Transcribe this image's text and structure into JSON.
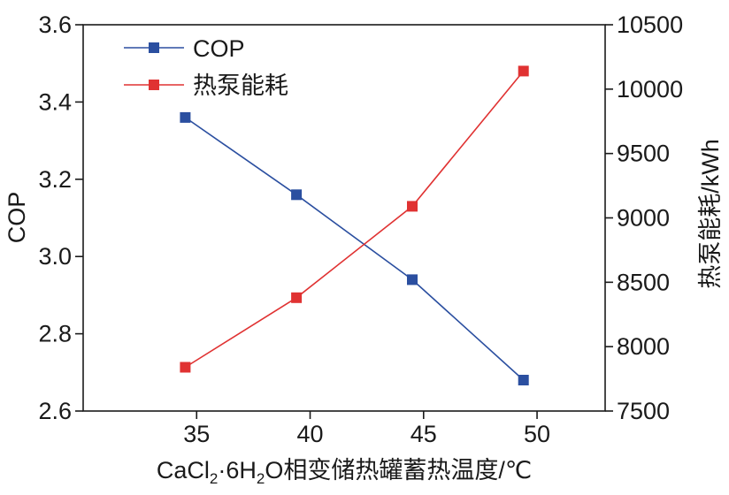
{
  "chart_data": {
    "type": "line",
    "x": [
      34.5,
      39.4,
      44.5,
      49.4
    ],
    "xlim": [
      30,
      53
    ],
    "x_ticks": [
      "35",
      "40",
      "45",
      "50"
    ],
    "xlabel": {
      "prefix": "CaCl",
      "sub1": "2",
      "mid": "·6H",
      "sub2": "2",
      "suffix": "O相变储热罐蓄热温度/℃"
    },
    "ylabel_left": "COP",
    "ylim_left": [
      2.6,
      3.6
    ],
    "y_ticks_left": [
      "2.6",
      "2.8",
      "3.0",
      "3.2",
      "3.4",
      "3.6"
    ],
    "ylabel_right": "热泵能耗/kWh",
    "ylim_right": [
      7500,
      10500
    ],
    "y_ticks_right": [
      "7500",
      "8000",
      "8500",
      "9000",
      "9500",
      "10000",
      "10500"
    ],
    "series": [
      {
        "name": "COP",
        "axis": "left",
        "color": "#2b4fa0",
        "values": [
          3.36,
          3.16,
          2.94,
          2.68
        ]
      },
      {
        "name": "热泵能耗",
        "axis": "right",
        "color": "#e03232",
        "values": [
          7840,
          8380,
          9090,
          10140
        ]
      }
    ],
    "legend_position": "top-left",
    "grid": false
  }
}
